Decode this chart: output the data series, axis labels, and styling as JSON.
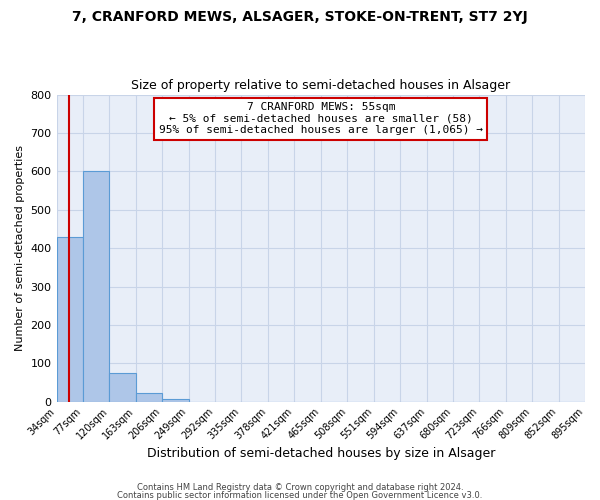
{
  "title": "7, CRANFORD MEWS, ALSAGER, STOKE-ON-TRENT, ST7 2YJ",
  "subtitle": "Size of property relative to semi-detached houses in Alsager",
  "xlabel": "Distribution of semi-detached houses by size in Alsager",
  "ylabel": "Number of semi-detached properties",
  "bin_edges": [
    34,
    77,
    120,
    163,
    206,
    249,
    292,
    335,
    378,
    421,
    465,
    508,
    551,
    594,
    637,
    680,
    723,
    766,
    809,
    852,
    895
  ],
  "bin_labels": [
    "34sqm",
    "77sqm",
    "120sqm",
    "163sqm",
    "206sqm",
    "249sqm",
    "292sqm",
    "335sqm",
    "378sqm",
    "421sqm",
    "465sqm",
    "508sqm",
    "551sqm",
    "594sqm",
    "637sqm",
    "680sqm",
    "723sqm",
    "766sqm",
    "809sqm",
    "852sqm",
    "895sqm"
  ],
  "counts": [
    430,
    600,
    75,
    22,
    8,
    0,
    0,
    0,
    0,
    0,
    0,
    0,
    0,
    0,
    0,
    0,
    0,
    0,
    0,
    0
  ],
  "bar_color": "#aec6e8",
  "bar_edge_color": "#5b9bd5",
  "property_line_x": 55,
  "property_line_color": "#cc0000",
  "annotation_box_color": "#cc0000",
  "annotation_title": "7 CRANFORD MEWS: 55sqm",
  "annotation_line1": "← 5% of semi-detached houses are smaller (58)",
  "annotation_line2": "95% of semi-detached houses are larger (1,065) →",
  "ylim": [
    0,
    800
  ],
  "yticks": [
    0,
    100,
    200,
    300,
    400,
    500,
    600,
    700,
    800
  ],
  "footer_line1": "Contains HM Land Registry data © Crown copyright and database right 2024.",
  "footer_line2": "Contains public sector information licensed under the Open Government Licence v3.0.",
  "background_color": "#ffffff",
  "plot_bg_color": "#e8eef8",
  "grid_color": "#c8d4e8"
}
